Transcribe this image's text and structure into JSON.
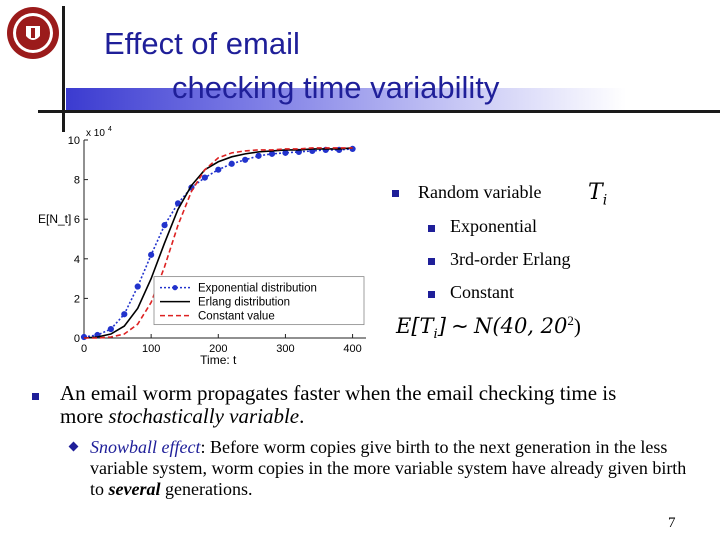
{
  "title": {
    "line1": "Effect of email",
    "line2": "checking time variability"
  },
  "chart_data": {
    "type": "line",
    "title": "",
    "xlabel": "Time: t",
    "ylabel": "E[N_t]",
    "y_multiplier": "x 10^4",
    "xlim": [
      0,
      420
    ],
    "ylim": [
      0,
      10
    ],
    "x_ticks": [
      0,
      100,
      200,
      300,
      400
    ],
    "y_ticks": [
      0,
      2,
      4,
      6,
      8,
      10
    ],
    "legend_position": "bottom-right",
    "series": [
      {
        "name": "Exponential distribution",
        "style": "dotted-circles",
        "color": "#2233cc",
        "x": [
          0,
          20,
          40,
          60,
          80,
          100,
          120,
          140,
          160,
          180,
          200,
          220,
          240,
          260,
          280,
          300,
          320,
          340,
          360,
          380,
          400
        ],
        "y": [
          0.05,
          0.15,
          0.45,
          1.2,
          2.6,
          4.2,
          5.7,
          6.8,
          7.6,
          8.1,
          8.5,
          8.8,
          9.0,
          9.2,
          9.3,
          9.35,
          9.4,
          9.45,
          9.5,
          9.5,
          9.55
        ]
      },
      {
        "name": "Erlang distribution",
        "style": "solid",
        "color": "#000000",
        "x": [
          0,
          20,
          40,
          60,
          80,
          100,
          120,
          140,
          160,
          180,
          200,
          220,
          240,
          260,
          280,
          300,
          320,
          340,
          360,
          380,
          400
        ],
        "y": [
          0.0,
          0.05,
          0.2,
          0.6,
          1.5,
          3.0,
          4.8,
          6.5,
          7.7,
          8.5,
          8.9,
          9.15,
          9.3,
          9.4,
          9.45,
          9.5,
          9.5,
          9.55,
          9.55,
          9.55,
          9.6
        ]
      },
      {
        "name": "Constant value",
        "style": "dashed",
        "color": "#dd2222",
        "x": [
          0,
          20,
          40,
          60,
          80,
          100,
          120,
          140,
          160,
          180,
          200,
          220,
          240,
          260,
          280,
          300,
          320,
          340,
          360,
          380,
          400
        ],
        "y": [
          0.0,
          0.0,
          0.05,
          0.2,
          0.7,
          1.8,
          3.6,
          5.7,
          7.4,
          8.5,
          9.1,
          9.35,
          9.45,
          9.5,
          9.5,
          9.55,
          9.55,
          9.6,
          9.6,
          9.6,
          9.6
        ]
      }
    ]
  },
  "right_list": {
    "main": "Random variable",
    "symbol": "T",
    "symbol_sub": "i",
    "items": [
      "Exponential",
      "3rd-order Erlang",
      "Constant"
    ],
    "formula": {
      "lhs": "E[T",
      "lhs_sub": "i",
      "lhs_close": "]",
      "rel": "∼",
      "rhs": "N(40, 20",
      "rhs_sup": "2",
      "rhs_close": ")"
    }
  },
  "body": {
    "point_line1": "An email worm propagates faster when the email checking time is",
    "point_line2_plain": "more ",
    "point_line2_emph": "stochastically variable",
    "point_line2_end": ".",
    "sub_label": "Snowball effect",
    "sub_colon": ":",
    "sub_text1": " Before worm copies give birth to the next generation in the less variable system, worm copies in the more variable system have already given birth to ",
    "sub_bold": "several",
    "sub_text2": " generations."
  },
  "page_number": "7",
  "colors": {
    "title": "#1f1f99",
    "bullet": "#1f1f99",
    "seal": "#9b1b1b"
  }
}
